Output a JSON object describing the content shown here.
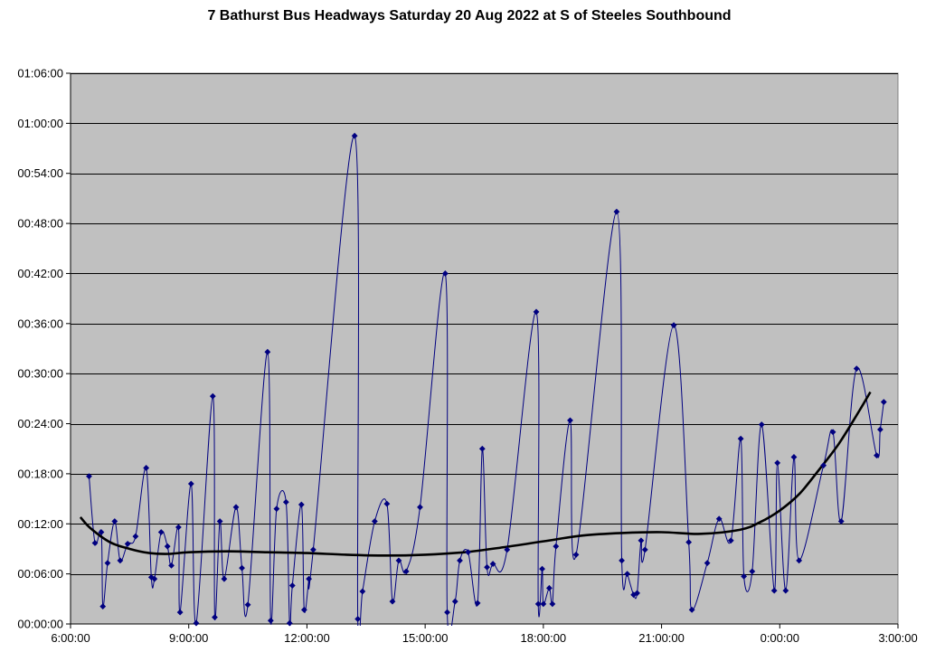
{
  "chart_data": {
    "type": "line",
    "title": "7 Bathurst Bus Headways Saturday 20 Aug 2022 at S of Steeles Southbound",
    "xlabel": "",
    "ylabel": "",
    "x_unit": "hours",
    "y_unit": "minutes",
    "xlim": [
      6,
      27
    ],
    "ylim": [
      0,
      66
    ],
    "x_ticks": [
      6,
      9,
      12,
      15,
      18,
      21,
      24,
      27
    ],
    "x_tick_labels": [
      "6:00:00",
      "9:00:00",
      "12:00:00",
      "15:00:00",
      "18:00:00",
      "21:00:00",
      "0:00:00",
      "3:00:00"
    ],
    "y_ticks": [
      0,
      6,
      12,
      18,
      24,
      30,
      36,
      42,
      48,
      54,
      60,
      66
    ],
    "y_tick_labels": [
      "00:00:00",
      "00:06:00",
      "00:12:00",
      "00:18:00",
      "00:24:00",
      "00:30:00",
      "00:36:00",
      "00:42:00",
      "00:48:00",
      "00:54:00",
      "01:00:00",
      "01:06:00"
    ],
    "grid": "horizontal",
    "plot_background": "#c0c0c0",
    "legend": "none",
    "series": [
      {
        "color": "#000080",
        "marker": "diamond",
        "x": [
          6.47,
          6.62,
          6.78,
          6.82,
          6.94,
          7.12,
          7.26,
          7.45,
          7.65,
          7.92,
          8.05,
          8.13,
          8.3,
          8.46,
          8.56,
          8.74,
          8.78,
          9.06,
          9.19,
          9.61,
          9.66,
          9.79,
          9.9,
          10.2,
          10.35,
          10.5,
          11.0,
          11.08,
          11.23,
          11.47,
          11.56,
          11.63,
          11.86,
          11.93,
          12.05,
          12.16,
          13.21,
          13.29,
          13.41,
          13.72,
          14.03,
          14.17,
          14.33,
          14.52,
          14.87,
          15.51,
          15.56,
          15.76,
          15.88,
          16.09,
          16.33,
          16.45,
          16.57,
          16.72,
          17.08,
          17.82,
          17.87,
          17.97,
          18.0,
          18.15,
          18.23,
          18.32,
          18.68,
          18.83,
          19.86,
          19.99,
          20.13,
          20.29,
          20.38,
          20.48,
          20.58,
          21.31,
          21.69,
          21.77,
          22.16,
          22.46,
          22.76,
          23.01,
          23.09,
          23.3,
          23.54,
          23.86,
          23.94,
          24.15,
          24.36,
          24.49,
          25.11,
          25.35,
          25.56,
          25.95,
          26.46,
          26.55,
          26.64
        ],
        "y": [
          17.7,
          9.7,
          11.0,
          2.1,
          7.3,
          12.3,
          7.6,
          9.6,
          10.5,
          18.7,
          5.6,
          5.4,
          11.0,
          9.3,
          7.0,
          11.6,
          1.4,
          16.8,
          0.1,
          27.3,
          0.8,
          12.3,
          5.4,
          14.0,
          6.7,
          2.3,
          32.6,
          0.4,
          13.8,
          14.6,
          0.1,
          4.6,
          14.3,
          1.7,
          5.4,
          8.9,
          58.5,
          0.6,
          3.9,
          12.3,
          14.4,
          2.7,
          7.6,
          6.3,
          14.0,
          42.0,
          1.4,
          2.7,
          7.6,
          8.6,
          2.5,
          21.0,
          6.8,
          7.2,
          8.9,
          37.4,
          2.4,
          6.6,
          2.4,
          4.3,
          2.4,
          9.3,
          24.4,
          8.3,
          49.4,
          7.6,
          6.0,
          3.5,
          3.7,
          10.0,
          8.9,
          35.8,
          9.8,
          1.7,
          7.3,
          12.6,
          10.0,
          22.2,
          5.7,
          6.3,
          23.9,
          4.0,
          19.3,
          4.0,
          20.0,
          7.6,
          19.0,
          23.0,
          12.3,
          30.6,
          20.2,
          23.3,
          26.6
        ]
      },
      {
        "color": "#000000",
        "marker": "none",
        "x": [
          6.25,
          6.5,
          7.0,
          7.5,
          8.0,
          8.5,
          9.0,
          10.0,
          11.0,
          12.0,
          13.0,
          14.0,
          15.0,
          16.0,
          17.0,
          18.0,
          19.0,
          20.0,
          21.0,
          22.0,
          23.0,
          23.5,
          24.0,
          24.5,
          25.0,
          25.5,
          26.0,
          26.3
        ],
        "y": [
          12.8,
          11.5,
          9.8,
          9.0,
          8.5,
          8.4,
          8.6,
          8.7,
          8.6,
          8.5,
          8.3,
          8.2,
          8.3,
          8.6,
          9.2,
          9.9,
          10.6,
          10.9,
          11.0,
          10.8,
          11.3,
          12.2,
          13.6,
          15.6,
          18.5,
          21.6,
          25.4,
          27.8
        ]
      }
    ]
  }
}
